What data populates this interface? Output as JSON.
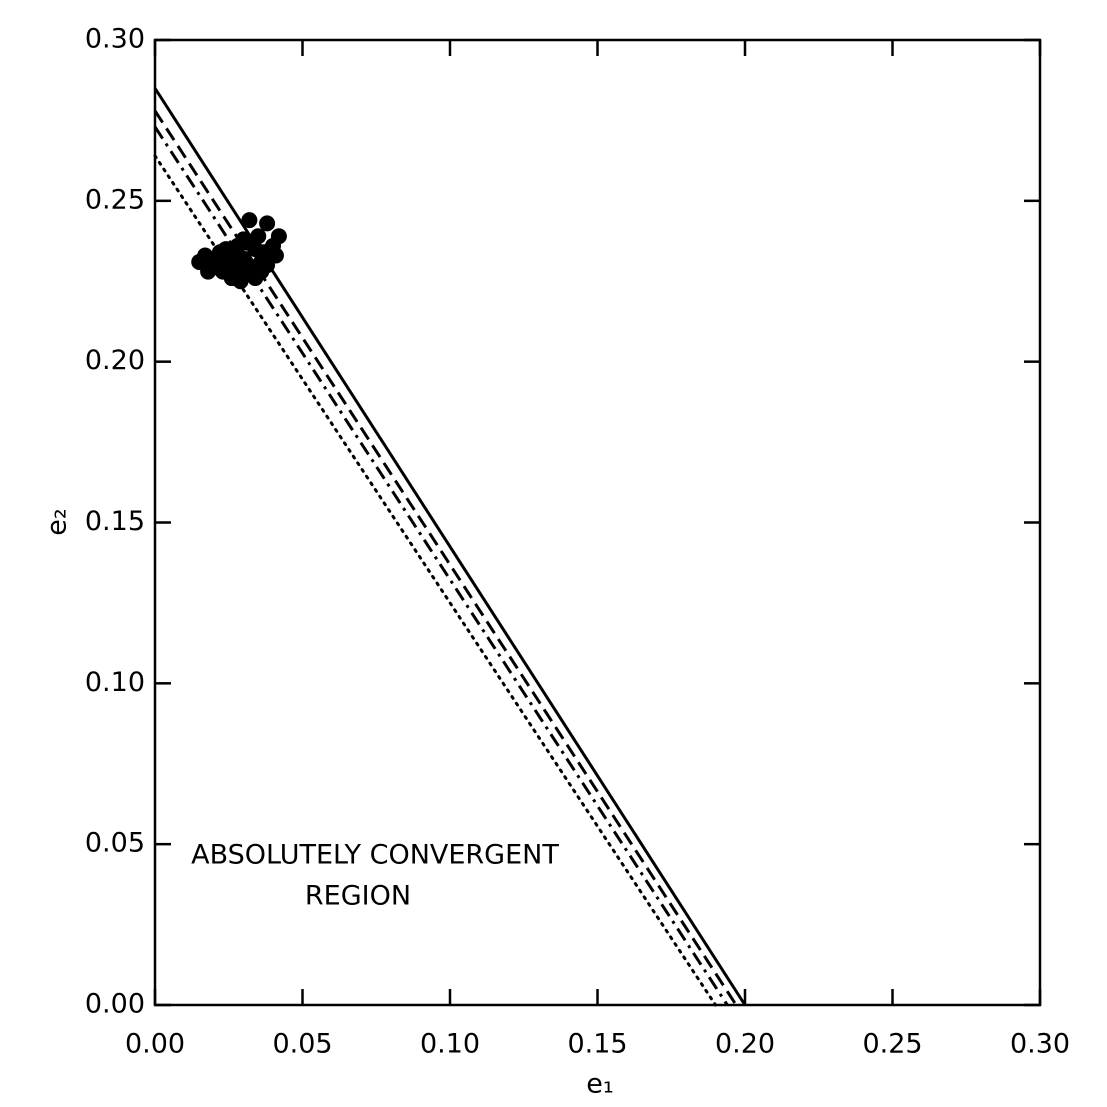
{
  "chart_data": {
    "type": "scatter",
    "xlabel": "e₁",
    "ylabel": "e₂",
    "annotation": [
      "ABSOLUTELY CONVERGENT",
      "REGION"
    ],
    "xlim": [
      0,
      0.3
    ],
    "ylim": [
      0,
      0.3
    ],
    "xticks": [
      {
        "value": 0,
        "label": "0.00"
      },
      {
        "value": 0.05,
        "label": "0.05"
      },
      {
        "value": 0.1,
        "label": "0.10"
      },
      {
        "value": 0.15,
        "label": "0.15"
      },
      {
        "value": 0.2,
        "label": "0.20"
      },
      {
        "value": 0.25,
        "label": "0.25"
      },
      {
        "value": 0.3,
        "label": "0.30"
      }
    ],
    "yticks": [
      {
        "value": 0,
        "label": "0.00"
      },
      {
        "value": 0.05,
        "label": "0.05"
      },
      {
        "value": 0.1,
        "label": "0.10"
      },
      {
        "value": 0.15,
        "label": "0.15"
      },
      {
        "value": 0.2,
        "label": "0.20"
      },
      {
        "value": 0.25,
        "label": "0.25"
      },
      {
        "value": 0.3,
        "label": "0.30"
      }
    ],
    "lines": [
      {
        "style": "solid",
        "color": "#000000",
        "x": [
          0,
          0.2
        ],
        "values": [
          0.285,
          0
        ]
      },
      {
        "style": "dashed",
        "color": "#000000",
        "x": [
          0,
          0.197
        ],
        "values": [
          0.278,
          0
        ]
      },
      {
        "style": "dashdot",
        "color": "#000000",
        "x": [
          0,
          0.194
        ],
        "values": [
          0.273,
          0
        ]
      },
      {
        "style": "dotted",
        "color": "#000000",
        "x": [
          0,
          0.19
        ],
        "values": [
          0.264,
          0
        ]
      }
    ],
    "series": [
      {
        "color": "#000000",
        "x": [
          0.015,
          0.017,
          0.019,
          0.02,
          0.022,
          0.023,
          0.025,
          0.026,
          0.027,
          0.028,
          0.029,
          0.03,
          0.031,
          0.032,
          0.033,
          0.034,
          0.035,
          0.036,
          0.037,
          0.038,
          0.039,
          0.04,
          0.042,
          0.032,
          0.034,
          0.028,
          0.024,
          0.036,
          0.03,
          0.026,
          0.038,
          0.041,
          0.021,
          0.018
        ],
        "values": [
          0.231,
          0.233,
          0.229,
          0.232,
          0.234,
          0.228,
          0.231,
          0.226,
          0.233,
          0.229,
          0.225,
          0.232,
          0.237,
          0.244,
          0.229,
          0.235,
          0.239,
          0.231,
          0.234,
          0.243,
          0.233,
          0.236,
          0.239,
          0.228,
          0.226,
          0.236,
          0.235,
          0.228,
          0.238,
          0.23,
          0.23,
          0.233,
          0.23,
          0.228
        ]
      }
    ]
  }
}
